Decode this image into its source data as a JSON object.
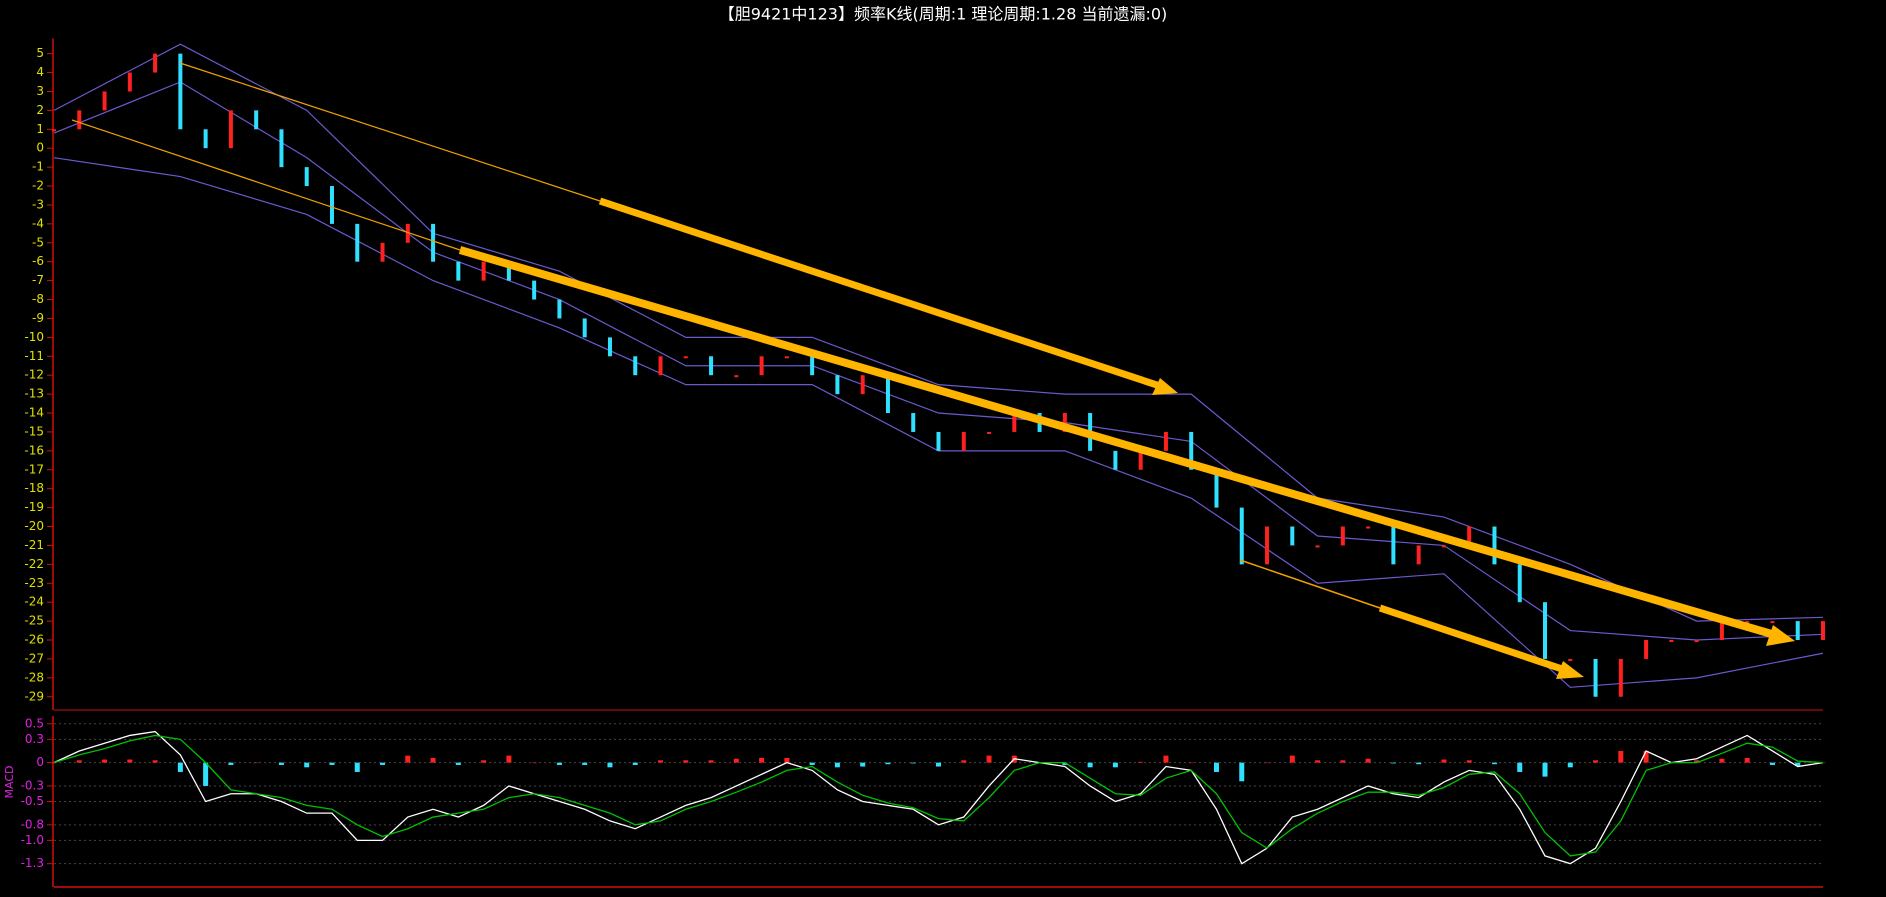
{
  "chart_data": [
    {
      "type": "kline",
      "title": "【胆9421中123】频率K线(周期:1 理论周期:1.28 当前遗漏:0)",
      "values": [
        1,
        2,
        3,
        4,
        5,
        1,
        0,
        2,
        1,
        -1,
        -2,
        -4,
        -6,
        -5,
        -4,
        -6,
        -7,
        -6,
        -7,
        -8,
        -9,
        -10,
        -11,
        -12,
        -11,
        -11,
        -12,
        -12,
        -11,
        -11,
        -12,
        -13,
        -12,
        -14,
        -15,
        -16,
        -15,
        -15,
        -14,
        -15,
        -14,
        -16,
        -17,
        -16,
        -15,
        -17,
        -19,
        -22,
        -20,
        -21,
        -21,
        -20,
        -20,
        -22,
        -21,
        -21,
        -20,
        -22,
        -24,
        -27,
        -27,
        -29,
        -27,
        -26,
        -26,
        -26,
        -25,
        -25,
        -25,
        -26,
        -25
      ],
      "up_color": "#ff2020",
      "down_color": "#30e0ff",
      "band_x": [
        0,
        5,
        10,
        15,
        20,
        25,
        30,
        35,
        40,
        45,
        50,
        55,
        60,
        65,
        70
      ],
      "bands": [
        {
          "color": "#6a5acd",
          "values": [
            2,
            5.5,
            2,
            -4.5,
            -6.5,
            -10,
            -10,
            -12.5,
            -13,
            -13,
            -18.5,
            -19.5,
            -22,
            -25,
            -24.8
          ]
        },
        {
          "color": "#6a5acd",
          "values": [
            0.8,
            3.5,
            -0.5,
            -5.5,
            -8,
            -11.5,
            -11.5,
            -14,
            -14.5,
            -15.5,
            -20.5,
            -21,
            -25.5,
            -26,
            -25.7
          ]
        },
        {
          "color": "#6a5acd",
          "values": [
            -0.5,
            -1.5,
            -3.5,
            -7,
            -9.5,
            -12.5,
            -12.5,
            -16,
            -16,
            -18.5,
            -23,
            -22.5,
            -28.5,
            -28,
            -26.7
          ]
        }
      ],
      "ylim": [
        -29.7,
        5.8
      ],
      "yticks": [
        5,
        4,
        3,
        2,
        1,
        0,
        -1,
        -2,
        -3,
        -4,
        -5,
        -6,
        -7,
        -8,
        -9,
        -10,
        -11,
        -12,
        -13,
        -14,
        -15,
        -16,
        -17,
        -18,
        -19,
        -20,
        -21,
        -22,
        -23,
        -24,
        -25,
        -26,
        -27,
        -28,
        -29
      ],
      "tick_color": "#e0e000",
      "axis_color": "#d01010"
    },
    {
      "type": "macd",
      "y_label": "MACD",
      "series": [
        {
          "color": "#ffffff",
          "values": [
            0,
            0.15,
            0.25,
            0.35,
            0.4,
            0.1,
            -0.5,
            -0.4,
            -0.4,
            -0.5,
            -0.65,
            -0.65,
            -1.0,
            -1.0,
            -0.7,
            -0.6,
            -0.7,
            -0.55,
            -0.3,
            -0.4,
            -0.5,
            -0.6,
            -0.75,
            -0.85,
            -0.7,
            -0.55,
            -0.45,
            -0.3,
            -0.15,
            0,
            -0.1,
            -0.35,
            -0.5,
            -0.55,
            -0.6,
            -0.8,
            -0.7,
            -0.3,
            0.05,
            0,
            -0.05,
            -0.3,
            -0.5,
            -0.4,
            -0.05,
            -0.1,
            -0.6,
            -1.3,
            -1.1,
            -0.7,
            -0.6,
            -0.45,
            -0.3,
            -0.4,
            -0.45,
            -0.25,
            -0.1,
            -0.15,
            -0.6,
            -1.2,
            -1.3,
            -1.1,
            -0.5,
            0.15,
            0,
            0.05,
            0.2,
            0.35,
            0.15,
            -0.05,
            0
          ]
        },
        {
          "color": "#00c000",
          "values": [
            0,
            0.1,
            0.18,
            0.28,
            0.35,
            0.3,
            0,
            -0.35,
            -0.4,
            -0.45,
            -0.55,
            -0.6,
            -0.8,
            -0.95,
            -0.85,
            -0.7,
            -0.65,
            -0.6,
            -0.45,
            -0.4,
            -0.45,
            -0.55,
            -0.65,
            -0.8,
            -0.75,
            -0.6,
            -0.5,
            -0.38,
            -0.25,
            -0.1,
            -0.05,
            -0.25,
            -0.42,
            -0.52,
            -0.58,
            -0.72,
            -0.75,
            -0.45,
            -0.1,
            0,
            0,
            -0.2,
            -0.4,
            -0.42,
            -0.2,
            -0.1,
            -0.4,
            -0.9,
            -1.1,
            -0.85,
            -0.65,
            -0.5,
            -0.38,
            -0.38,
            -0.42,
            -0.32,
            -0.15,
            -0.12,
            -0.4,
            -0.9,
            -1.2,
            -1.15,
            -0.75,
            -0.1,
            0,
            0,
            0.12,
            0.25,
            0.2,
            0.02,
            0
          ]
        }
      ],
      "histogram": {
        "up_color": "#ff2020",
        "down_color": "#30e0ff",
        "values": [
          0,
          0.03,
          0.04,
          0.04,
          0.03,
          -0.12,
          -0.3,
          -0.03,
          0,
          -0.03,
          -0.06,
          -0.03,
          -0.12,
          -0.03,
          0.09,
          0.06,
          -0.03,
          0.03,
          0.09,
          0,
          -0.03,
          -0.03,
          -0.06,
          -0.03,
          0.03,
          0.03,
          0.03,
          0.05,
          0.06,
          0.06,
          -0.03,
          -0.06,
          -0.05,
          -0.02,
          -0.01,
          -0.05,
          0.03,
          0.09,
          0.09,
          0,
          -0.03,
          -0.06,
          -0.06,
          0.01,
          0.09,
          0,
          -0.12,
          -0.24,
          0,
          0.09,
          0.03,
          0.03,
          0.05,
          -0.01,
          -0.02,
          0.04,
          0.03,
          -0.02,
          -0.12,
          -0.18,
          -0.06,
          0.03,
          0.15,
          0.15,
          0,
          0.03,
          0.05,
          0.06,
          -0.03,
          -0.04,
          0
        ]
      },
      "ylim": [
        -1.6,
        0.6
      ],
      "yticks": [
        0.5,
        0.3,
        0,
        -0.3,
        -0.5,
        -0.8,
        {
          "value": -1,
          "label": "-1.0"
        },
        -1.3
      ],
      "grid": true,
      "tick_color": "#e020e0",
      "axis_color": "#d01010"
    }
  ]
}
